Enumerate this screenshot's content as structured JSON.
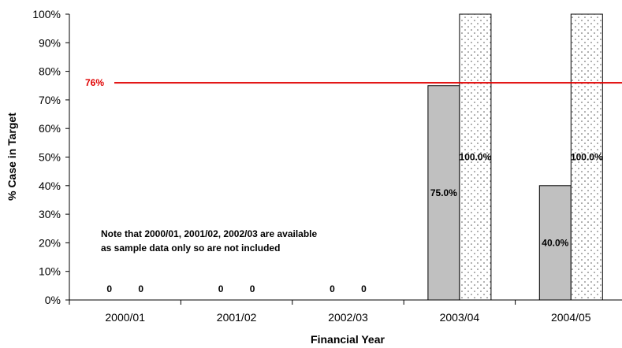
{
  "chart_data": {
    "type": "bar",
    "xlabel": "Financial Year",
    "ylabel": "% Case in Target",
    "ylim": [
      0,
      100
    ],
    "y_ticks": [
      "0%",
      "10%",
      "20%",
      "30%",
      "40%",
      "50%",
      "60%",
      "70%",
      "80%",
      "90%",
      "100%"
    ],
    "categories": [
      "2000/01",
      "2001/02",
      "2002/03",
      "2003/04",
      "2004/05"
    ],
    "series": [
      {
        "fill": "#c0c0c0",
        "pattern": "solid",
        "values": [
          0,
          0,
          0,
          75.0,
          40.0
        ],
        "data_labels": [
          "0",
          "0",
          "0",
          "75.0%",
          "40.0%"
        ]
      },
      {
        "fill": "#ffffff",
        "pattern": "dotted",
        "values": [
          0,
          0,
          0,
          100.0,
          100.0
        ],
        "data_labels": [
          "0",
          "0",
          "0",
          "100.0%",
          "100.0%"
        ]
      }
    ],
    "target_line": {
      "value": 76,
      "label": "76%",
      "color": "#e00000"
    },
    "note": [
      "Note that 2000/01, 2001/02, 2002/03 are available",
      "as sample data only so are not included"
    ],
    "legend": "none",
    "grid": false
  }
}
